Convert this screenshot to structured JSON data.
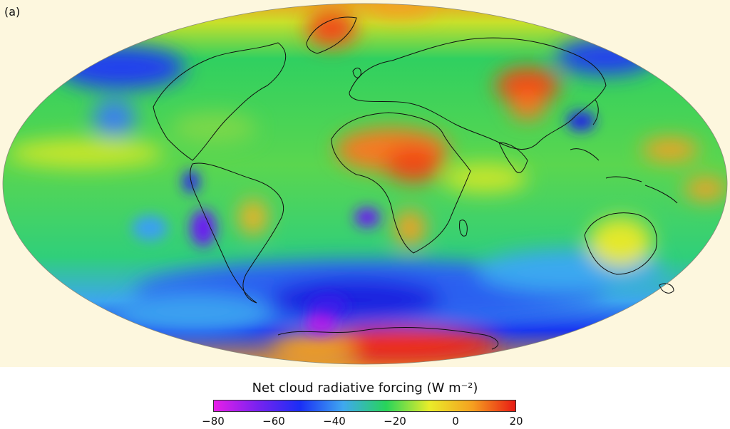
{
  "panel_label": "(a)",
  "colorbar": {
    "title": "Net cloud radiative forcing (W m⁻²)",
    "min": -80,
    "max": 20,
    "ticks": [
      "−80",
      "−60",
      "−40",
      "−20",
      "0",
      "20"
    ],
    "colors": [
      "#e81ee8",
      "#7a22f0",
      "#1a2ef5",
      "#3fa8f0",
      "#27d45a",
      "#e9ec2a",
      "#f5a020",
      "#e81a14"
    ]
  },
  "map_colors": {
    "background": "#fdf7de",
    "ocean_base": "#38d46a"
  }
}
